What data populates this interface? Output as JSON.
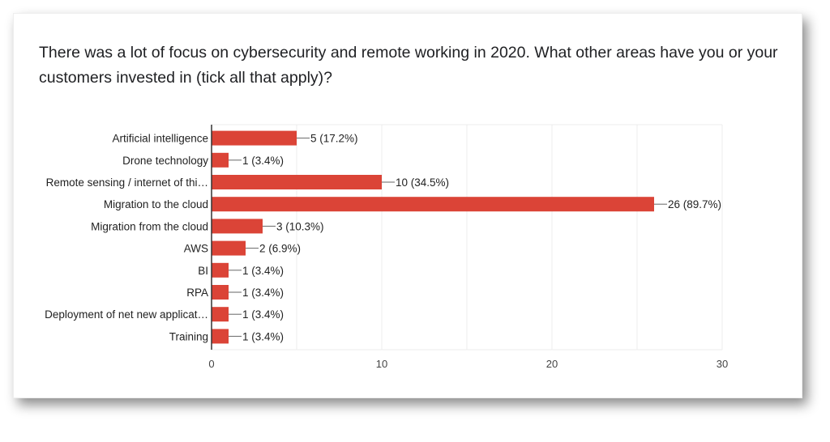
{
  "chart_data": {
    "type": "bar",
    "orientation": "horizontal",
    "title": "There was a lot of focus on cybersecurity and remote working in 2020. What other areas have you or your customers invested in (tick all that apply)?",
    "categories": [
      "Artificial intelligence",
      "Drone technology",
      "Remote sensing / internet of thi…",
      "Migration to the cloud",
      "Migration from the cloud",
      "AWS",
      "BI",
      "RPA",
      "Deployment of net new applicat…",
      "Training"
    ],
    "values": [
      5,
      1,
      10,
      26,
      3,
      2,
      1,
      1,
      1,
      1
    ],
    "data_labels": [
      "5 (17.2%)",
      "1 (3.4%)",
      "10 (34.5%)",
      "26 (89.7%)",
      "3 (10.3%)",
      "2 (6.9%)",
      "1 (3.4%)",
      "1 (3.4%)",
      "1 (3.4%)",
      "1 (3.4%)"
    ],
    "xlim": [
      0,
      30
    ],
    "x_ticks": [
      "0",
      "10",
      "20",
      "30"
    ],
    "minor_grid_step": 5,
    "grid": true,
    "xlabel": "",
    "ylabel": "",
    "bar_color": "#db4437"
  }
}
